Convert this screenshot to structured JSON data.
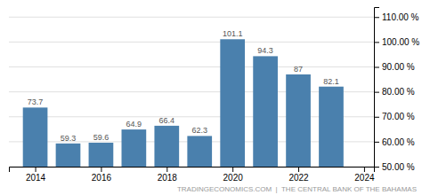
{
  "chart_data": {
    "type": "bar",
    "x": [
      2014,
      2015,
      2016,
      2017,
      2018,
      2019,
      2020,
      2021,
      2022,
      2023
    ],
    "values": [
      73.7,
      59.3,
      59.6,
      64.9,
      66.4,
      62.3,
      101.1,
      94.3,
      87.0,
      82.1
    ],
    "color": "#4a80ad",
    "xlim": [
      2013.2,
      2024.3
    ],
    "xticks": [
      2014,
      2016,
      2018,
      2020,
      2022,
      2024
    ],
    "ylim": [
      50,
      114
    ],
    "yticks": [
      {
        "value": 50,
        "label": "50.00 %"
      },
      {
        "value": 60,
        "label": "60.00 %"
      },
      {
        "value": 70,
        "label": "70.00 %"
      },
      {
        "value": 80,
        "label": "80.00 %"
      },
      {
        "value": 90,
        "label": "90.00 %"
      },
      {
        "value": 100,
        "label": "100.00 %"
      },
      {
        "value": 110,
        "label": "110.00 %"
      }
    ],
    "grid": true,
    "data_labels": true,
    "annotations": [
      "TRADINGECONOMICS.COM  |  THE CENTRAL BANK OF THE BAHAMAS"
    ]
  }
}
